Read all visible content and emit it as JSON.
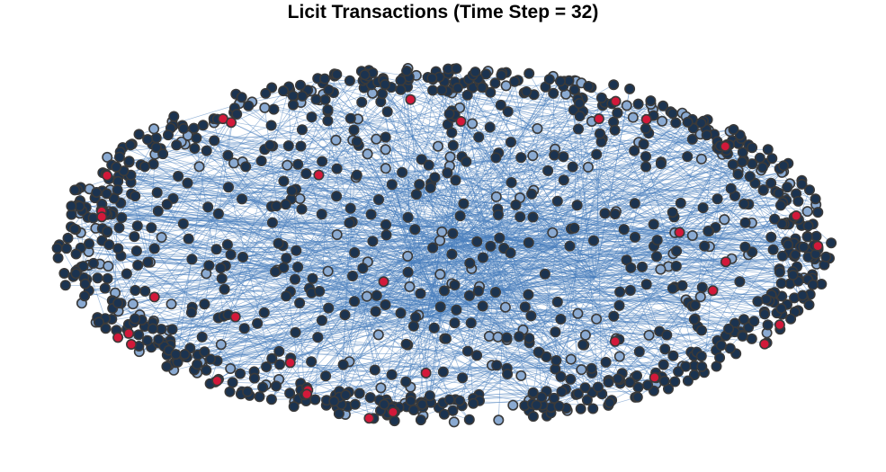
{
  "title": "Licit Transactions (Time Step = 32)",
  "colors": {
    "edge": "#4a7fbe",
    "node_dark": "#1b3350",
    "node_light": "#8aaad2",
    "node_red": "#d2193a",
    "node_outline": "#3a3a3a"
  },
  "graph": {
    "node_count": 1100,
    "node_shares": {
      "dark": 0.8,
      "light": 0.17,
      "red": 0.03
    }
  }
}
